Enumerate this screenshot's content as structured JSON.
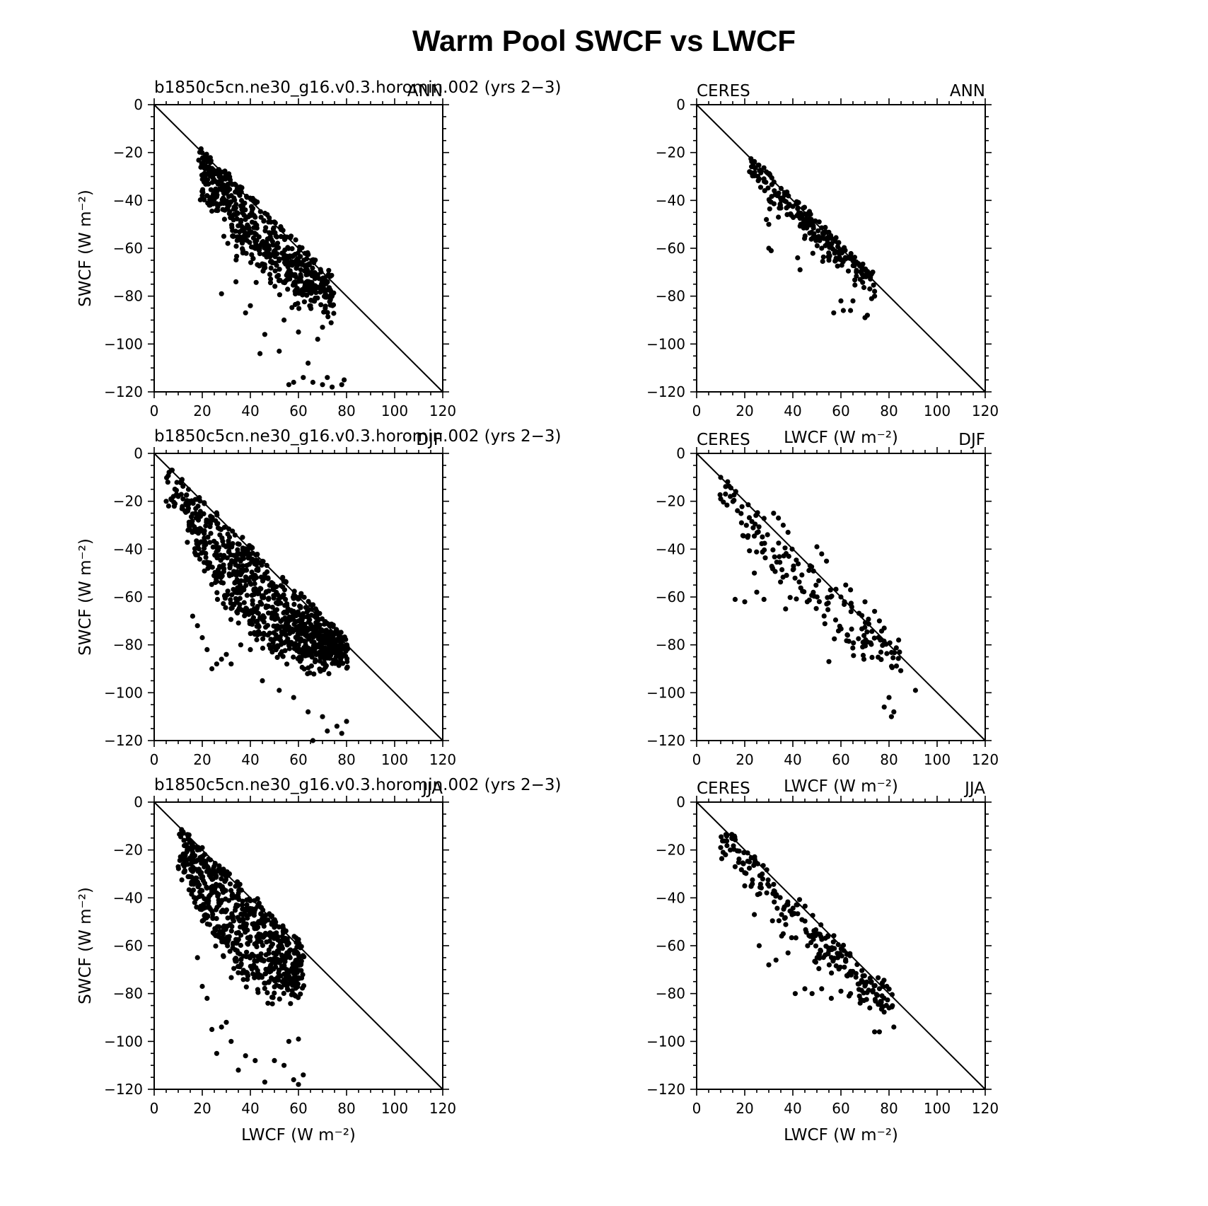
{
  "figure_title": "Warm Pool SWCF vs LWCF",
  "colors": {
    "points": "#000000",
    "axes": "#000000",
    "background": "#ffffff"
  },
  "chart_data": [
    {
      "type": "scatter",
      "left_title": "b1850c5cn.ne30_g16.v0.3.horomin.002 (yrs 2−3)",
      "right_title": "ANN",
      "ylabel": "SWCF (W m⁻²)",
      "xlabel": "",
      "xlim": [
        0,
        120
      ],
      "ylim": [
        -120,
        0
      ],
      "xticks": [
        0,
        20,
        40,
        60,
        80,
        100,
        120
      ],
      "yticks": [
        0,
        -20,
        -40,
        -60,
        -80,
        -100,
        -120
      ],
      "one_to_one_line": true,
      "cloud": {
        "xmin": 19,
        "xmax": 74,
        "s_lo": 1.9,
        "s_hi": 1.15,
        "tightness": 1.2,
        "sigma": 3,
        "n": 600,
        "seed": 11,
        "xbias": 1.0
      },
      "points": [
        [
          20,
          -38
        ],
        [
          22,
          -38
        ],
        [
          26,
          -36
        ],
        [
          30,
          -37
        ],
        [
          28,
          -79
        ],
        [
          34,
          -74
        ],
        [
          38,
          -87
        ],
        [
          40,
          -84
        ],
        [
          44,
          -104
        ],
        [
          46,
          -96
        ],
        [
          52,
          -103
        ],
        [
          56,
          -117
        ],
        [
          58,
          -116
        ],
        [
          62,
          -114
        ],
        [
          66,
          -116
        ],
        [
          70,
          -117
        ],
        [
          72,
          -114
        ],
        [
          74,
          -118
        ],
        [
          78,
          -117
        ],
        [
          79,
          -115
        ],
        [
          64,
          -108
        ],
        [
          68,
          -98
        ],
        [
          70,
          -93
        ],
        [
          60,
          -95
        ],
        [
          54,
          -90
        ],
        [
          65,
          -84
        ]
      ]
    },
    {
      "type": "scatter",
      "left_title": "CERES",
      "right_title": "ANN",
      "ylabel": "",
      "xlabel": "",
      "xlim": [
        0,
        120
      ],
      "ylim": [
        -120,
        0
      ],
      "xticks": [
        0,
        20,
        40,
        60,
        80,
        100,
        120
      ],
      "yticks": [
        0,
        -20,
        -40,
        -60,
        -80,
        -100,
        -120
      ],
      "one_to_one_line": true,
      "cloud": {
        "xmin": 22,
        "xmax": 73,
        "s_lo": 1.3,
        "s_hi": 1.0,
        "tightness": 0.7,
        "sigma": 3,
        "n": 220,
        "seed": 23,
        "xbias": 1.0
      },
      "points": [
        [
          22,
          -28
        ],
        [
          24,
          -29
        ],
        [
          26,
          -31
        ],
        [
          28,
          -31
        ],
        [
          29,
          -48
        ],
        [
          30,
          -50
        ],
        [
          30,
          -60
        ],
        [
          31,
          -61
        ],
        [
          34,
          -47
        ],
        [
          42,
          -64
        ],
        [
          43,
          -69
        ],
        [
          55,
          -65
        ],
        [
          57,
          -87
        ],
        [
          60,
          -82
        ],
        [
          61,
          -86
        ],
        [
          64,
          -86
        ],
        [
          65,
          -82
        ],
        [
          70,
          -89
        ],
        [
          71,
          -88
        ],
        [
          74,
          -78
        ],
        [
          74,
          -80
        ],
        [
          68,
          -73
        ],
        [
          72,
          -77
        ]
      ]
    },
    {
      "type": "scatter",
      "left_title": "b1850c5cn.ne30_g16.v0.3.horomin.002 (yrs 2−3)",
      "right_title": "DJF",
      "ylabel": "SWCF (W m⁻²)",
      "xlabel": "LWCF (W m⁻²)",
      "xlim": [
        0,
        120
      ],
      "ylim": [
        -120,
        0
      ],
      "xticks": [
        0,
        20,
        40,
        60,
        80,
        100,
        120
      ],
      "yticks": [
        0,
        -20,
        -40,
        -60,
        -80,
        -100,
        -120
      ],
      "one_to_one_line": true,
      "cloud": {
        "xmin": 5,
        "xmax": 80,
        "s_lo": 2.6,
        "s_hi": 1.05,
        "tightness": 1.0,
        "sigma": 3,
        "n": 900,
        "seed": 37,
        "xbias": 0.7
      },
      "points": [
        [
          5,
          -20
        ],
        [
          6,
          -22
        ],
        [
          7,
          -19
        ],
        [
          8,
          -18
        ],
        [
          10,
          -18
        ],
        [
          12,
          -19
        ],
        [
          14,
          -20
        ],
        [
          16,
          -68
        ],
        [
          18,
          -72
        ],
        [
          20,
          -77
        ],
        [
          22,
          -82
        ],
        [
          24,
          -90
        ],
        [
          26,
          -88
        ],
        [
          28,
          -86
        ],
        [
          30,
          -84
        ],
        [
          32,
          -88
        ],
        [
          36,
          -80
        ],
        [
          40,
          -82
        ],
        [
          45,
          -95
        ],
        [
          52,
          -99
        ],
        [
          58,
          -102
        ],
        [
          64,
          -108
        ],
        [
          70,
          -110
        ],
        [
          72,
          -116
        ],
        [
          76,
          -114
        ],
        [
          78,
          -117
        ],
        [
          80,
          -112
        ],
        [
          66,
          -120
        ]
      ]
    },
    {
      "type": "scatter",
      "left_title": "CERES",
      "right_title": "DJF",
      "ylabel": "",
      "xlabel": "LWCF (W m⁻²)",
      "xlim": [
        0,
        120
      ],
      "ylim": [
        -120,
        0
      ],
      "xticks": [
        0,
        20,
        40,
        60,
        80,
        100,
        120
      ],
      "yticks": [
        0,
        -20,
        -40,
        -60,
        -80,
        -100,
        -120
      ],
      "one_to_one_line": true,
      "cloud": {
        "xmin": 9,
        "xmax": 84,
        "s_lo": 1.7,
        "s_hi": 1.05,
        "tightness": 0.8,
        "sigma": 5,
        "n": 160,
        "seed": 53,
        "xbias": 1.0
      },
      "points": [
        [
          10,
          -19
        ],
        [
          12,
          -17
        ],
        [
          14,
          -18
        ],
        [
          16,
          -61
        ],
        [
          20,
          -62
        ],
        [
          24,
          -50
        ],
        [
          25,
          -58
        ],
        [
          28,
          -61
        ],
        [
          32,
          -25
        ],
        [
          34,
          -27
        ],
        [
          36,
          -30
        ],
        [
          38,
          -33
        ],
        [
          37,
          -65
        ],
        [
          46,
          -62
        ],
        [
          50,
          -39
        ],
        [
          52,
          -42
        ],
        [
          54,
          -45
        ],
        [
          55,
          -87
        ],
        [
          60,
          -60
        ],
        [
          62,
          -55
        ],
        [
          64,
          -57
        ],
        [
          70,
          -62
        ],
        [
          74,
          -66
        ],
        [
          76,
          -70
        ],
        [
          78,
          -73
        ],
        [
          80,
          -102
        ],
        [
          81,
          -110
        ],
        [
          82,
          -108
        ],
        [
          84,
          -78
        ],
        [
          91,
          -99
        ],
        [
          78,
          -106
        ]
      ]
    },
    {
      "type": "scatter",
      "left_title": "b1850c5cn.ne30_g16.v0.3.horomin.002 (yrs 2−3)",
      "right_title": "JJA",
      "ylabel": "SWCF (W m⁻²)",
      "xlabel": "LWCF (W m⁻²)",
      "xlim": [
        0,
        120
      ],
      "ylim": [
        -120,
        0
      ],
      "xticks": [
        0,
        20,
        40,
        60,
        80,
        100,
        120
      ],
      "yticks": [
        0,
        -20,
        -40,
        -60,
        -80,
        -100,
        -120
      ],
      "one_to_one_line": true,
      "cloud": {
        "xmin": 11,
        "xmax": 62,
        "s_lo": 2.6,
        "s_hi": 1.3,
        "tightness": 1.1,
        "sigma": 3,
        "n": 700,
        "seed": 71,
        "xbias": 1.0
      },
      "points": [
        [
          10,
          -27
        ],
        [
          12,
          -26
        ],
        [
          14,
          -26
        ],
        [
          16,
          -29
        ],
        [
          18,
          -65
        ],
        [
          20,
          -77
        ],
        [
          22,
          -82
        ],
        [
          24,
          -95
        ],
        [
          26,
          -105
        ],
        [
          28,
          -94
        ],
        [
          30,
          -92
        ],
        [
          32,
          -100
        ],
        [
          35,
          -112
        ],
        [
          38,
          -106
        ],
        [
          42,
          -108
        ],
        [
          46,
          -117
        ],
        [
          50,
          -108
        ],
        [
          54,
          -110
        ],
        [
          58,
          -116
        ],
        [
          60,
          -118
        ],
        [
          62,
          -114
        ],
        [
          56,
          -100
        ],
        [
          60,
          -99
        ]
      ]
    },
    {
      "type": "scatter",
      "left_title": "CERES",
      "right_title": "JJA",
      "ylabel": "",
      "xlabel": "LWCF (W m⁻²)",
      "xlim": [
        0,
        120
      ],
      "ylim": [
        -120,
        0
      ],
      "xticks": [
        0,
        20,
        40,
        60,
        80,
        100,
        120
      ],
      "yticks": [
        0,
        -20,
        -40,
        -60,
        -80,
        -100,
        -120
      ],
      "one_to_one_line": true,
      "cloud": {
        "xmin": 10,
        "xmax": 82,
        "s_lo": 1.6,
        "s_hi": 1.05,
        "tightness": 0.9,
        "sigma": 3,
        "n": 220,
        "seed": 89,
        "xbias": 1.0
      },
      "points": [
        [
          10,
          -19
        ],
        [
          11,
          -21
        ],
        [
          12,
          -22
        ],
        [
          14,
          -20
        ],
        [
          16,
          -27
        ],
        [
          20,
          -35
        ],
        [
          24,
          -47
        ],
        [
          26,
          -60
        ],
        [
          30,
          -68
        ],
        [
          33,
          -66
        ],
        [
          36,
          -55
        ],
        [
          38,
          -63
        ],
        [
          41,
          -80
        ],
        [
          45,
          -78
        ],
        [
          48,
          -80
        ],
        [
          52,
          -78
        ],
        [
          56,
          -82
        ],
        [
          60,
          -79
        ],
        [
          64,
          -80
        ],
        [
          68,
          -84
        ],
        [
          72,
          -86
        ],
        [
          74,
          -96
        ],
        [
          76,
          -96
        ],
        [
          80,
          -86
        ],
        [
          82,
          -94
        ]
      ]
    }
  ]
}
